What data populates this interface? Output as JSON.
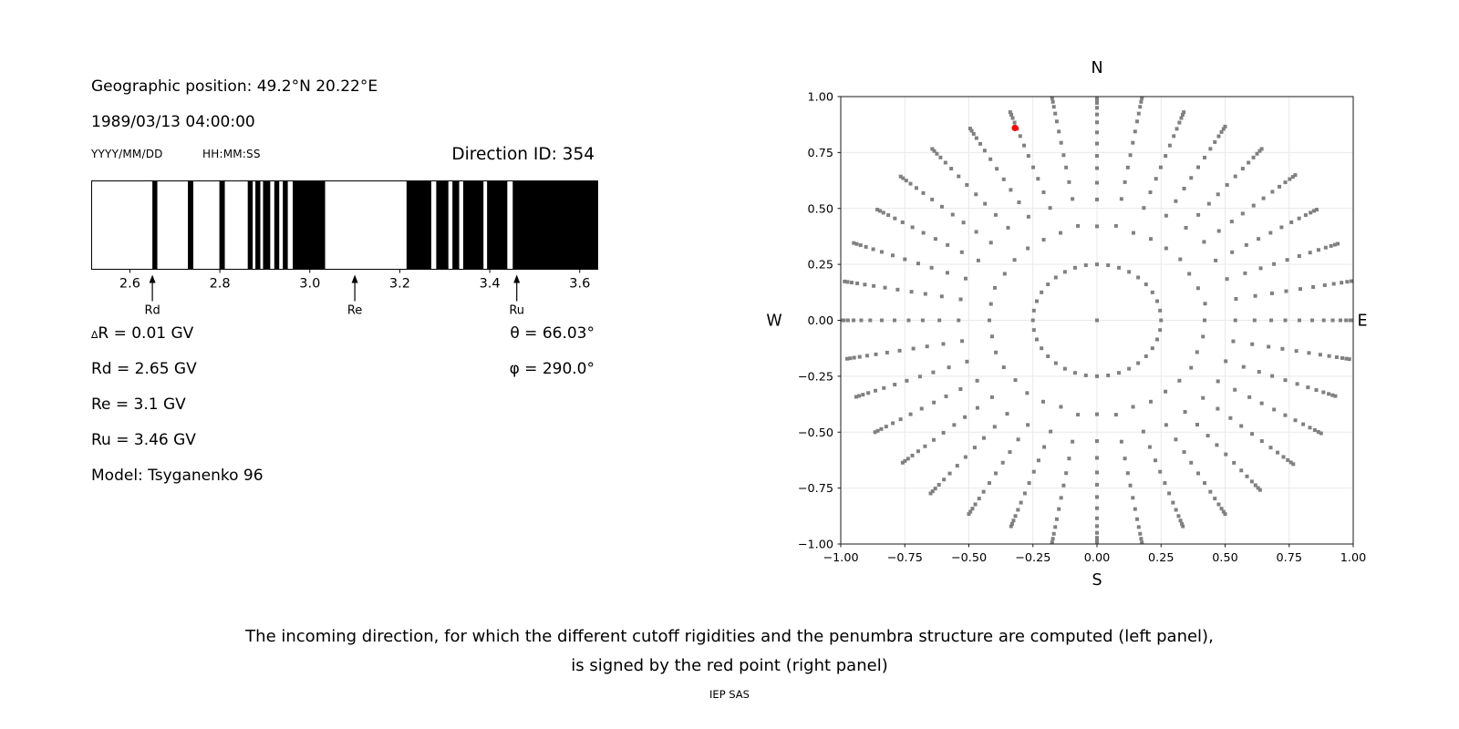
{
  "header": {
    "geo_position": "Geographic position: 49.2°N 20.22°E",
    "datetime": "1989/03/13 04:00:00",
    "date_format": "YYYY/MM/DD",
    "time_format": "HH:MM:SS",
    "direction_id": "Direction ID: 354"
  },
  "stats": {
    "delta_symbol": "∆",
    "delta_r_rest": "R = 0.01 GV",
    "rd": "Rd = 2.65 GV",
    "re": "Re = 3.1 GV",
    "ru": "Ru = 3.46 GV",
    "model": "Model: Tsyganenko 96",
    "theta": "θ = 66.03°",
    "phi": "φ = 290.0°"
  },
  "caption": {
    "line1": "The incoming direction, for which the different cutoff rigidities and the penumbra structure are computed (left panel),",
    "line2": "is signed by the red point (right panel)",
    "credit": "IEP SAS"
  },
  "chart_data": [
    {
      "type": "bar",
      "name": "penumbra-structure-barcode",
      "xlabel_unit": "GV",
      "xlim": [
        2.515,
        3.64
      ],
      "xticks": [
        2.6,
        2.8,
        3.0,
        3.2,
        3.4,
        3.6
      ],
      "xtick_labels": [
        "2.6",
        "2.8",
        "3.0",
        "3.2",
        "3.4",
        "3.6"
      ],
      "band_color": "#000000",
      "bands_gv": [
        [
          2.65,
          2.661
        ],
        [
          2.729,
          2.741
        ],
        [
          2.799,
          2.811
        ],
        [
          2.862,
          2.873
        ],
        [
          2.879,
          2.89
        ],
        [
          2.896,
          2.912
        ],
        [
          2.921,
          2.932
        ],
        [
          2.94,
          2.951
        ],
        [
          2.962,
          3.034
        ],
        [
          3.215,
          3.27
        ],
        [
          3.281,
          3.308
        ],
        [
          3.317,
          3.332
        ],
        [
          3.341,
          3.386
        ],
        [
          3.394,
          3.439
        ],
        [
          3.451,
          3.64
        ]
      ],
      "markers": [
        {
          "label": "Rd",
          "value": 2.65
        },
        {
          "label": "Re",
          "value": 3.1
        },
        {
          "label": "Ru",
          "value": 3.46
        }
      ]
    },
    {
      "type": "scatter",
      "name": "incoming-direction-sky-map",
      "xlim": [
        -1,
        1
      ],
      "ylim": [
        -1,
        1
      ],
      "xticks": [
        -1,
        -0.75,
        -0.5,
        -0.25,
        0,
        0.25,
        0.5,
        0.75,
        1
      ],
      "yticks": [
        1,
        0.75,
        0.5,
        0.25,
        0,
        -0.25,
        -0.5,
        -0.75,
        -1
      ],
      "xtick_labels": [
        "−1.00",
        "−0.75",
        "−0.50",
        "−0.25",
        "0.00",
        "0.25",
        "0.50",
        "0.75",
        "1.00"
      ],
      "ytick_labels": [
        "1.00",
        "0.75",
        "0.50",
        "0.25",
        "0.00",
        "−0.25",
        "−0.50",
        "−0.75",
        "−1.00"
      ],
      "compass": {
        "top": "N",
        "bottom": "S",
        "left": "W",
        "right": "E"
      },
      "grid": true,
      "grid_color": "#e9e9e9",
      "dot_color": "#808080",
      "dot_size_px": 4,
      "pattern": {
        "center_dot": true,
        "inner_ring_radius": 0.25,
        "azimuth_count": 36,
        "azimuth_step_deg": 10,
        "ring_radii": [
          0.42,
          0.54,
          0.615,
          0.68,
          0.735,
          0.79,
          0.84,
          0.885,
          0.92,
          0.95,
          0.972,
          0.988,
          1.0
        ],
        "spoke_tip_scale": [
          1.0,
          1.02,
          0.99,
          1.0,
          1.0,
          1.01,
          0.99,
          1.0,
          1.02,
          1.0,
          1.0,
          0.99,
          1.01,
          1.0,
          0.99,
          1.0,
          0.98,
          1.02,
          1.0,
          1.02,
          0.98,
          1.0,
          1.01,
          0.99,
          1.0,
          1.0,
          0.99,
          1.0,
          1.0,
          1.01,
          0.99,
          1.0,
          1.0,
          0.99,
          0.99,
          1.02
        ]
      },
      "red_point": {
        "x": -0.32,
        "y": 0.86,
        "color": "#ff0000"
      }
    }
  ]
}
